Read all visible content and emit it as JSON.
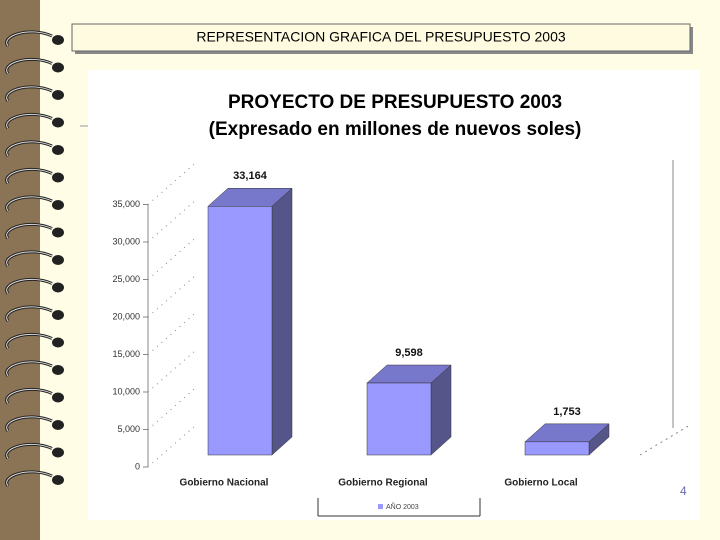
{
  "header": {
    "title": "REPRESENTACION GRAFICA DEL PRESUPUESTO 2003"
  },
  "chart_data": {
    "type": "bar3d",
    "title": "PROYECTO DE PRESUPUESTO  2003",
    "subtitle": "(Expresado en millones de nuevos soles)",
    "categories": [
      "Gobierno Nacional",
      "Gobierno Regional",
      "Gobierno Local"
    ],
    "series": [
      {
        "name": "AÑO 2003",
        "color": "#9999ff",
        "values": [
          33164,
          9598,
          1753
        ],
        "value_labels": [
          "33,164",
          "9,598",
          "1,753"
        ]
      }
    ],
    "ylim": [
      0,
      35000
    ],
    "yticks": [
      0,
      {
        "value": 5000,
        "label": "5,000"
      },
      {
        "value": 10000,
        "label": "10,000"
      },
      {
        "value": 15000,
        "label": "15,000"
      },
      {
        "value": 20000,
        "label": "20,000"
      },
      {
        "value": 25000,
        "label": "25,000"
      },
      {
        "value": 30000,
        "label": "30,000"
      },
      {
        "value": 35000,
        "label": "35,000"
      }
    ]
  },
  "footer": {
    "page_number": "4"
  }
}
